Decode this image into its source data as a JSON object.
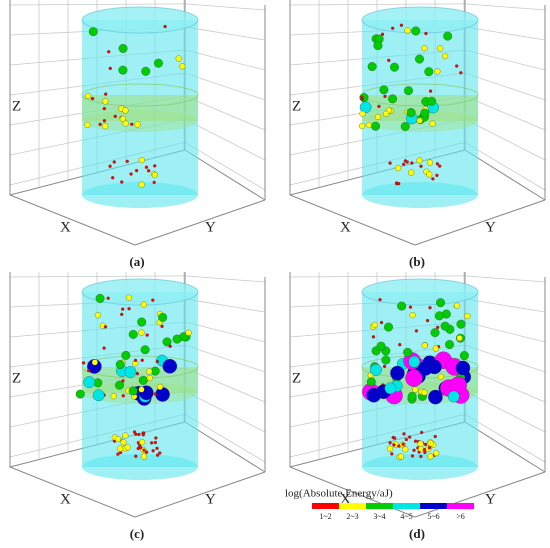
{
  "panels": [
    {
      "label": "(a)",
      "axes": {
        "x": "X",
        "y": "Y",
        "z": "Z"
      }
    },
    {
      "label": "(b)",
      "axes": {
        "x": "X",
        "y": "Y",
        "z": "Z"
      }
    },
    {
      "label": "(c)",
      "axes": {
        "x": "X",
        "y": "Y",
        "z": "Z"
      }
    },
    {
      "label": "(d)",
      "axes": {
        "x": "X",
        "y": "Y",
        "z": "Z"
      }
    }
  ],
  "legend": {
    "title": "log(Absolute Energy/aJ)",
    "classes": [
      {
        "label": "1~2",
        "color": "#ff0000"
      },
      {
        "label": "2~3",
        "color": "#ffff00"
      },
      {
        "label": "3~4",
        "color": "#00cc00"
      },
      {
        "label": "4~5",
        "color": "#00e5e5"
      },
      {
        "label": "5~6",
        "color": "#0000cc"
      },
      {
        "label": ">6",
        "color": "#ff00ff"
      }
    ]
  }
}
